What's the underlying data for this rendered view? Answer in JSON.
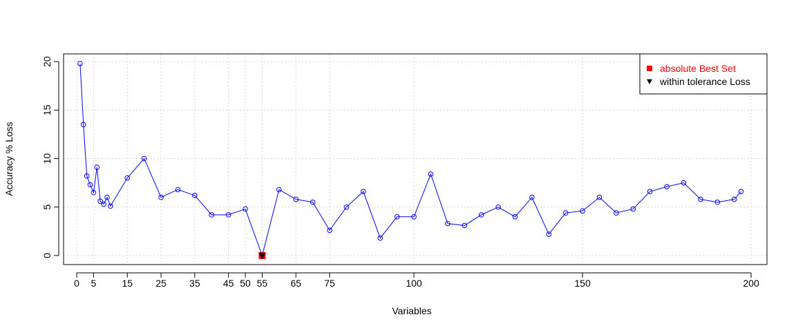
{
  "chart_data": {
    "type": "line",
    "x_label": "Variables",
    "y_label": "Accuracy % Loss",
    "x": [
      1,
      2,
      3,
      4,
      5,
      6,
      7,
      8,
      9,
      10,
      15,
      20,
      25,
      30,
      35,
      40,
      45,
      50,
      55,
      60,
      65,
      70,
      75,
      80,
      85,
      90,
      95,
      100,
      105,
      110,
      115,
      120,
      125,
      130,
      135,
      140,
      145,
      150,
      155,
      160,
      165,
      170,
      175,
      180,
      185,
      190,
      195,
      197
    ],
    "values": [
      19.8,
      13.5,
      8.2,
      7.3,
      6.5,
      9.1,
      5.6,
      5.3,
      6.0,
      5.1,
      8.0,
      10.0,
      6.0,
      6.8,
      6.2,
      4.2,
      4.2,
      4.8,
      0,
      6.8,
      5.8,
      5.5,
      2.6,
      5.0,
      6.6,
      1.8,
      4.0,
      4.0,
      8.4,
      3.3,
      3.1,
      4.2,
      5.0,
      4.0,
      6.0,
      2.2,
      4.4,
      4.6,
      6.0,
      4.4,
      4.8,
      6.6,
      7.1,
      7.5,
      5.8,
      5.5,
      5.8,
      6.6
    ],
    "color": "#0000ff",
    "markers": [
      {
        "name": "absolute Best Set",
        "color": "#ff0000",
        "shape": "square",
        "x": 55,
        "y": 0
      },
      {
        "name": "within tolerance Loss",
        "color": "#000000",
        "shape": "triangle",
        "x": 55,
        "y": 0
      }
    ],
    "xlim": [
      -3.9,
      204.7
    ],
    "ylim": [
      -0.93,
      20.8
    ],
    "xticks": [
      0,
      5,
      15,
      25,
      35,
      45,
      50,
      55,
      65,
      75,
      100,
      150,
      200
    ],
    "yticks": [
      0,
      5,
      10,
      15,
      20
    ],
    "grid": true,
    "legend": "top-right"
  }
}
